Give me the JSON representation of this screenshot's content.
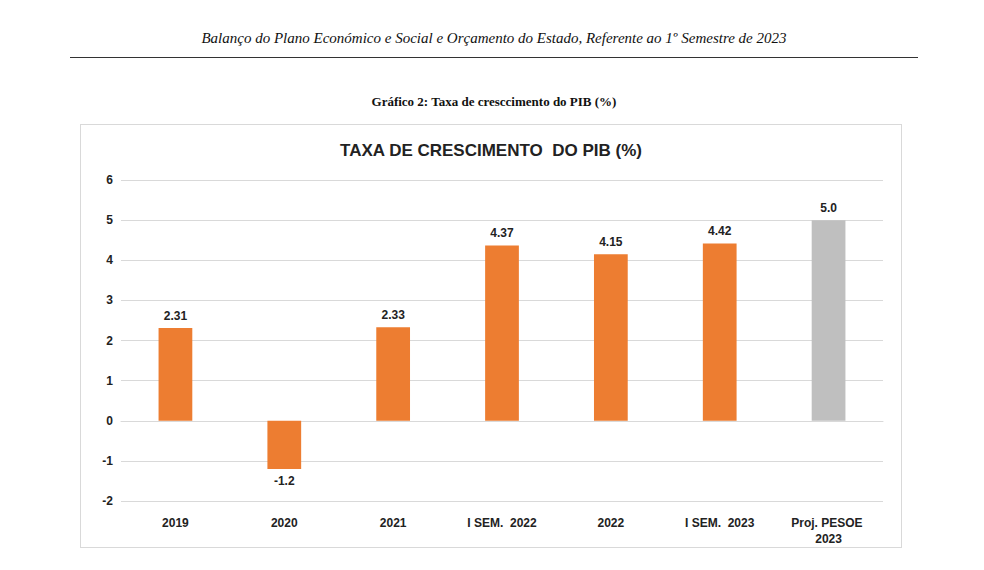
{
  "document": {
    "header": "Balanço do Plano Económico e Social e Orçamento do Estado, Referente ao 1º Semestre de 2023",
    "caption": "Gráfico 2: Taxa de cresccimento do PIB (%)"
  },
  "chart_data": {
    "type": "bar",
    "title": "TAXA DE CRESCIMENTO  DO PIB (%)",
    "categories": [
      "2019",
      "2020",
      "2021",
      "I SEM.  2022",
      "2022",
      "I SEM.  2023",
      "Proj. PESOE 2023"
    ],
    "values": [
      2.31,
      -1.2,
      2.33,
      4.37,
      4.15,
      4.42,
      5.0
    ],
    "value_labels": [
      "2.31",
      "-1.2",
      "2.33",
      "4.37",
      "4.15",
      "4.42",
      "5.0"
    ],
    "colors": [
      "#ed7d31",
      "#ed7d31",
      "#ed7d31",
      "#ed7d31",
      "#ed7d31",
      "#ed7d31",
      "#bfbfbf"
    ],
    "ylim": [
      -2,
      6
    ],
    "yticks": [
      -2,
      -1,
      0,
      1,
      2,
      3,
      4,
      5,
      6
    ],
    "grid": true,
    "data_labels": true
  }
}
